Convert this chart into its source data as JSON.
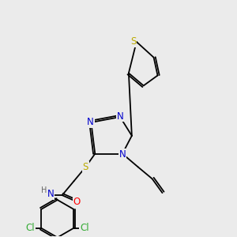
{
  "bg_color": "#ebebeb",
  "atom_colors": {
    "C": "#000000",
    "N": "#0000cc",
    "S": "#bbaa00",
    "O": "#ff0000",
    "Cl": "#33aa33",
    "H": "#666666"
  },
  "bond_color": "#000000",
  "bond_lw": 1.3,
  "font_size": 8.5
}
